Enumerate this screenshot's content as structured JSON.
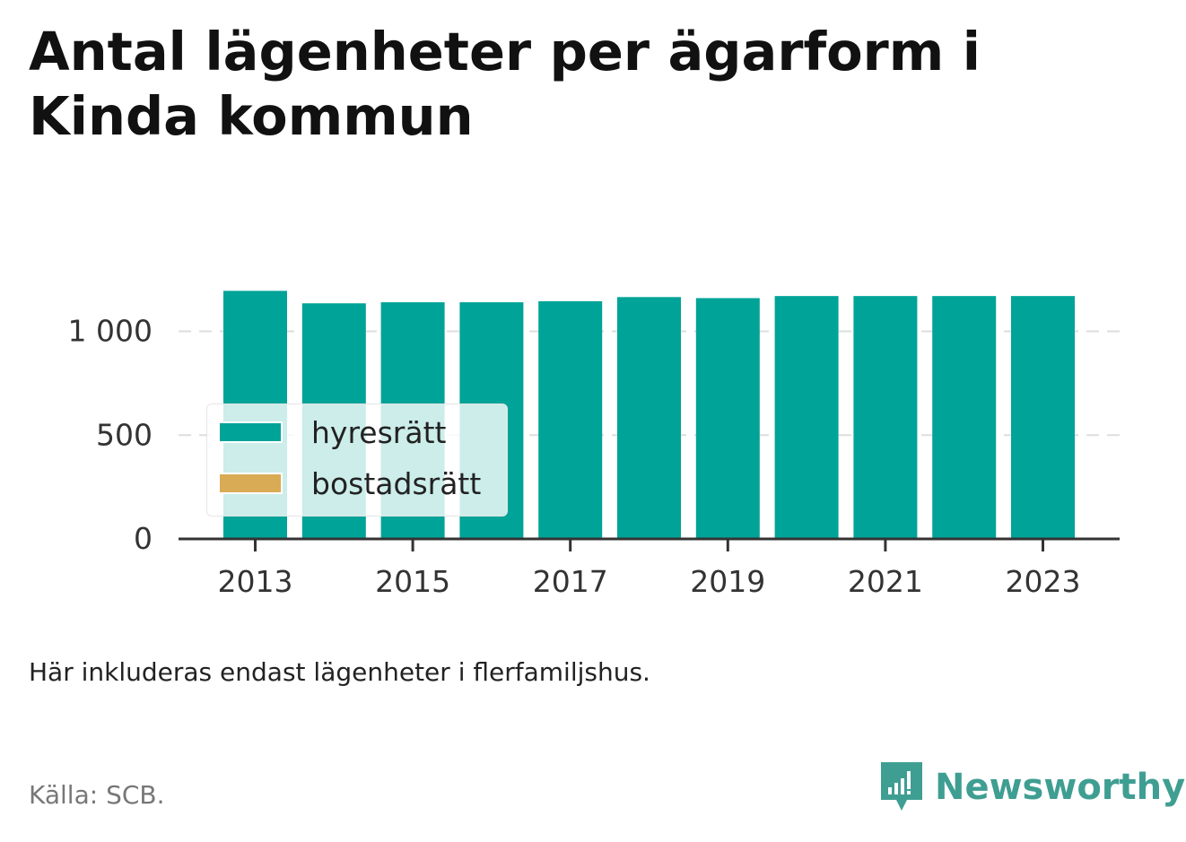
{
  "title": "Antal lägenheter per ägarform i Kinda kommun",
  "note": "Här inkluderas endast lägenheter i flerfamiljshus.",
  "source": "Källa: SCB.",
  "brand": {
    "name": "Newsworthy",
    "icon": "newsworthy-logo-icon",
    "color": "#3f9e92"
  },
  "colors": {
    "hyresratt": "#00a398",
    "bostadsratt": "#d9ab55",
    "grid": "#dddddd",
    "axis": "#333333"
  },
  "chart_data": {
    "type": "bar",
    "stacked": true,
    "categories": [
      "2013",
      "2014",
      "2015",
      "2016",
      "2017",
      "2018",
      "2019",
      "2020",
      "2021",
      "2022",
      "2023"
    ],
    "x_tick_labels": [
      "2013",
      "2015",
      "2017",
      "2019",
      "2021",
      "2023"
    ],
    "series": [
      {
        "name": "hyresrätt",
        "color": "#00a398",
        "values": [
          1195,
          1135,
          1140,
          1140,
          1145,
          1165,
          1160,
          1170,
          1170,
          1170,
          1170
        ]
      },
      {
        "name": "bostadsrätt",
        "color": "#d9ab55",
        "values": [
          0,
          0,
          0,
          0,
          0,
          0,
          0,
          0,
          0,
          0,
          0
        ]
      }
    ],
    "y_ticks": [
      0,
      500,
      1000
    ],
    "y_tick_labels": [
      "0",
      "500",
      "1 000"
    ],
    "ylim": [
      0,
      1250
    ],
    "grid": true,
    "legend_position": "bottom-left"
  }
}
